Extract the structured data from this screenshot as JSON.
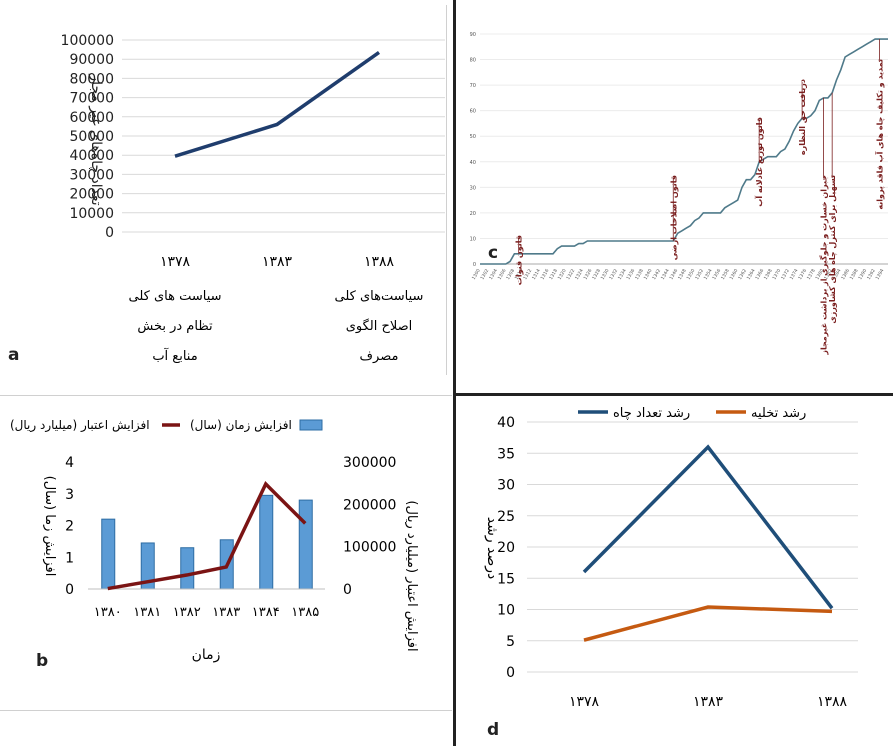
{
  "panels": {
    "a": {
      "letter": "a",
      "chart_data": {
        "type": "line",
        "ylabel": "تعداد چاه‌های غیر مجاز",
        "ylim": [
          0,
          100000
        ],
        "yticks": [
          0,
          10000,
          20000,
          30000,
          40000,
          50000,
          60000,
          70000,
          80000,
          90000,
          100000
        ],
        "categories": [
          "۱۳۷۸",
          "۱۳۸۳",
          "۱۳۸۸"
        ],
        "category_notes": [
          [
            "سیاست های کلی",
            "تظام در بخش",
            "منابع آب"
          ],
          [],
          [
            "سیاست‌های کلی",
            "اصلاح الگوی",
            "مصرف"
          ]
        ],
        "values": [
          39500,
          56000,
          93500
        ],
        "grid": true,
        "color": "#1f3d6d"
      }
    },
    "b": {
      "letter": "b",
      "chart_data": {
        "type": "bar+line",
        "xlabel": "زمان",
        "categories": [
          "۱۳۸۰",
          "۱۳۸۱",
          "۱۳۸۲",
          "۱۳۸۳",
          "۱۳۸۴",
          "۱۳۸۵"
        ],
        "ylabel_left": "افزایش زما (سال)",
        "ylabel_right": "افزایش اعتبار (میلیارد ریال)",
        "ylim_left": [
          0,
          4
        ],
        "yticks_left": [
          0,
          1,
          2,
          3,
          4
        ],
        "ylim_right": [
          0,
          300000
        ],
        "yticks_right": [
          0,
          100000,
          200000,
          300000
        ],
        "series": [
          {
            "name": "افزایش زمان (سال)",
            "type": "bar",
            "axis": "left",
            "values": [
              2.2,
              1.45,
              1.3,
              1.55,
              2.95,
              2.8
            ],
            "color": "#5b9bd5"
          },
          {
            "name": "افزایش اعتبار (میلیارد ریال)",
            "type": "line",
            "axis": "right",
            "values": [
              1000,
              17000,
              33000,
              52000,
              248000,
              155000
            ],
            "color": "#7b1414"
          }
        ],
        "legend": "top"
      }
    },
    "c": {
      "letter": "c",
      "chart_data": {
        "type": "line",
        "ylim": [
          0,
          90
        ],
        "yticks": [
          "0",
          "10",
          "20",
          "30",
          "40",
          "50",
          "60",
          "70",
          "80",
          "90"
        ],
        "x": [
          1300,
          1301,
          1302,
          1303,
          1304,
          1305,
          1306,
          1307,
          1308,
          1309,
          1310,
          1311,
          1312,
          1313,
          1314,
          1315,
          1316,
          1317,
          1318,
          1319,
          1320,
          1321,
          1322,
          1323,
          1324,
          1325,
          1326,
          1327,
          1328,
          1329,
          1330,
          1331,
          1332,
          1333,
          1334,
          1335,
          1336,
          1337,
          1338,
          1339,
          1340,
          1341,
          1342,
          1343,
          1344,
          1345,
          1346,
          1347,
          1348,
          1349,
          1350,
          1351,
          1352,
          1353,
          1354,
          1355,
          1356,
          1357,
          1358,
          1359,
          1360,
          1361,
          1362,
          1363,
          1364,
          1365,
          1366,
          1367,
          1368,
          1369,
          1370,
          1371,
          1372,
          1373,
          1374,
          1375,
          1376,
          1377,
          1378,
          1379,
          1380,
          1381,
          1382,
          1383,
          1384,
          1385,
          1386,
          1387,
          1388,
          1389,
          1390,
          1391,
          1392,
          1393,
          1394,
          1395
        ],
        "values": [
          0,
          0,
          0,
          0,
          0,
          0,
          0,
          1,
          4,
          4,
          4,
          4,
          4,
          4,
          4,
          4,
          4,
          4,
          6,
          7,
          7,
          7,
          7,
          8,
          8,
          9,
          9,
          9,
          9,
          9,
          9,
          9,
          9,
          9,
          9,
          9,
          9,
          9,
          9,
          9,
          9,
          9,
          9,
          9,
          9,
          9,
          12,
          13,
          14,
          15,
          17,
          18,
          20,
          20,
          20,
          20,
          20,
          22,
          23,
          24,
          25,
          30,
          33,
          33,
          35,
          40,
          41,
          42,
          42,
          42,
          44,
          45,
          48,
          52,
          55,
          57,
          57,
          58,
          60,
          64,
          65,
          65,
          67,
          72,
          76,
          81,
          82,
          83,
          84,
          85,
          86,
          87,
          88,
          88,
          88,
          88
        ],
        "xtick_labels": [
          "1300",
          "1302",
          "1304",
          "1306",
          "1308",
          "1310",
          "1312",
          "1314",
          "1316",
          "1318",
          "1320",
          "1322",
          "1324",
          "1326",
          "1328",
          "1330",
          "1332",
          "1334",
          "1336",
          "1338",
          "1340",
          "1342",
          "1344",
          "1346",
          "1348",
          "1350",
          "1352",
          "1354",
          "1356",
          "1358",
          "1360",
          "1362",
          "1364",
          "1366",
          "1368",
          "1370",
          "1372",
          "1374",
          "1376",
          "1378",
          "1380",
          "1382",
          "1384",
          "1386",
          "1388",
          "1390",
          "1392",
          "1394"
        ],
        "annotations": [
          {
            "text": "قانون قنوات",
            "year": 1309
          },
          {
            "text": "قانون اصلاحات ارضی",
            "year": 1345
          },
          {
            "text": "قانون توزیع عادلانه آب",
            "year": 1365
          },
          {
            "text": "دریافت حق النظاره",
            "year": 1375
          },
          {
            "text": "جبران خسارت و جلوگیری از برداشت غیرمجاز",
            "year": 1380
          },
          {
            "text": "تسهیل برای کنترل چاه های کشاورزی",
            "year": 1382
          },
          {
            "text": "تمدید و تکلیف چاه های آب فاقد پروانه",
            "year": 1393
          }
        ],
        "color": "#4f7a8a"
      }
    },
    "d": {
      "letter": "d",
      "chart_data": {
        "type": "line",
        "ylabel": "درصد رشد",
        "ylim": [
          0,
          40
        ],
        "yticks": [
          0,
          5,
          10,
          15,
          20,
          25,
          30,
          35,
          40
        ],
        "categories": [
          "۱۳۷۸",
          "۱۳۸۳",
          "۱۳۸۸"
        ],
        "series": [
          {
            "name": "رشد تعداد چاه",
            "values": [
              16,
              36,
              10.2
            ],
            "color": "#1f4e79"
          },
          {
            "name": "رشد تخلیه",
            "values": [
              5.1,
              10.4,
              9.7
            ],
            "color": "#c55a11"
          }
        ],
        "legend": "top",
        "grid": true
      }
    }
  }
}
